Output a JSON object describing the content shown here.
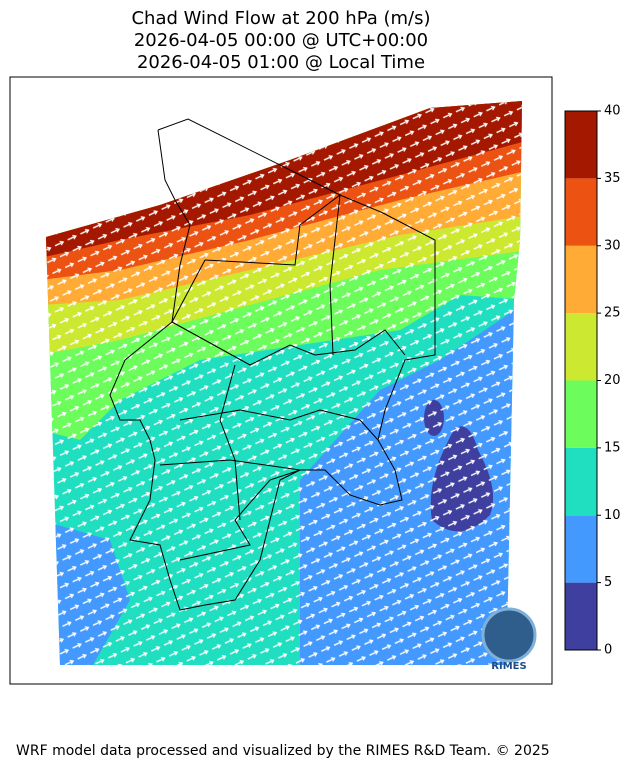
{
  "title": {
    "line1": "Chad Wind Flow at 200 hPa (m/s)",
    "line2": "2026-04-05 00:00 @ UTC+00:00",
    "line3": "2026-04-05 01:00 @ Local Time"
  },
  "colorbar": {
    "lim": [
      0,
      40
    ],
    "ticks": [
      0,
      5,
      10,
      15,
      20,
      25,
      30,
      35,
      40
    ],
    "colors": [
      "#3f3f9f",
      "#4499ff",
      "#1fdfc0",
      "#6cfc5c",
      "#cde830",
      "#ffab36",
      "#ec5212",
      "#a51800"
    ]
  },
  "logo": "RIMES",
  "footer": "WRF model data processed and visualized by the RIMES R&D Team. © 2025"
}
